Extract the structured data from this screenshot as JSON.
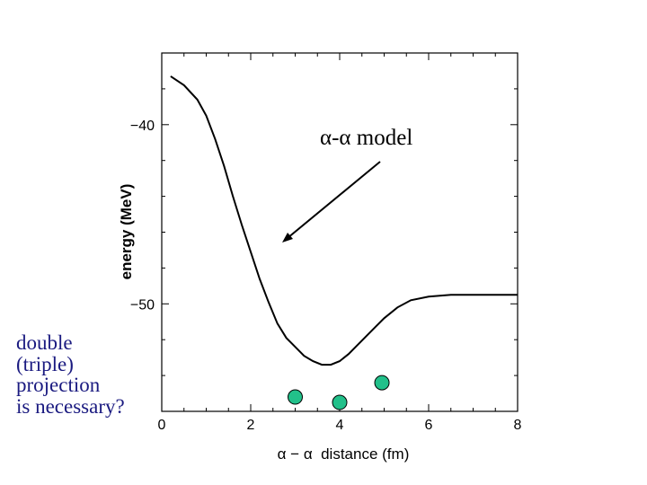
{
  "chart_data": {
    "type": "line",
    "xlabel": "α − α  distance (fm)",
    "ylabel": "energy (MeV)",
    "xlim": [
      0,
      8
    ],
    "ylim": [
      -56,
      -36
    ],
    "x_ticks": [
      0,
      2,
      4,
      6,
      8
    ],
    "y_ticks": [
      -40,
      -50
    ],
    "grid": false,
    "series": [
      {
        "name": "α-α model",
        "x": [
          0.2,
          0.5,
          0.8,
          1.0,
          1.2,
          1.4,
          1.6,
          1.8,
          2.0,
          2.2,
          2.4,
          2.6,
          2.8,
          3.0,
          3.2,
          3.4,
          3.6,
          3.8,
          4.0,
          4.2,
          4.4,
          4.6,
          4.8,
          5.0,
          5.3,
          5.6,
          6.0,
          6.5,
          7.0,
          8.0
        ],
        "y": [
          -37.3,
          -37.8,
          -38.6,
          -39.5,
          -40.8,
          -42.3,
          -44.0,
          -45.6,
          -47.1,
          -48.6,
          -49.9,
          -51.1,
          -51.9,
          -52.4,
          -52.9,
          -53.2,
          -53.4,
          -53.4,
          -53.2,
          -52.8,
          -52.3,
          -51.8,
          -51.3,
          -50.8,
          -50.2,
          -49.8,
          -49.6,
          -49.5,
          -49.5,
          -49.5
        ]
      }
    ],
    "points": [
      {
        "x": 3.0,
        "y": -55.2
      },
      {
        "x": 4.0,
        "y": -55.5
      },
      {
        "x": 4.95,
        "y": -54.4
      }
    ],
    "annotation": "α-α model"
  },
  "side_note": [
    "double",
    "(triple)",
    "projection",
    "is necessary?"
  ]
}
